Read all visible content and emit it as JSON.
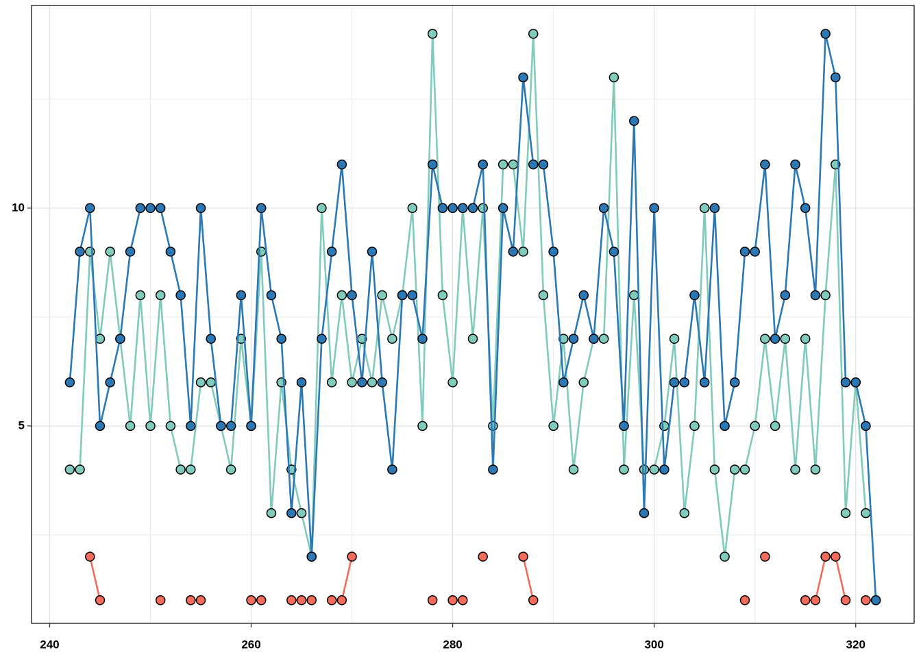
{
  "chart_data": {
    "type": "line",
    "x": [
      242,
      243,
      244,
      245,
      246,
      247,
      248,
      249,
      250,
      251,
      252,
      253,
      254,
      255,
      256,
      257,
      258,
      259,
      260,
      261,
      262,
      263,
      264,
      265,
      266,
      267,
      268,
      269,
      270,
      271,
      272,
      273,
      274,
      275,
      276,
      277,
      278,
      279,
      280,
      281,
      282,
      283,
      284,
      285,
      286,
      287,
      288,
      289,
      290,
      291,
      292,
      293,
      294,
      295,
      296,
      297,
      298,
      299,
      300,
      301,
      302,
      303,
      304,
      305,
      306,
      307,
      308,
      309,
      310,
      311,
      312,
      313,
      314,
      315,
      316,
      317,
      318,
      319,
      320,
      321,
      322
    ],
    "series": [
      {
        "color": "#f26b5b",
        "values": [
          null,
          null,
          2,
          1,
          null,
          null,
          null,
          null,
          null,
          1,
          null,
          null,
          1,
          1,
          null,
          null,
          null,
          null,
          1,
          1,
          null,
          null,
          1,
          1,
          1,
          null,
          1,
          1,
          2,
          null,
          null,
          null,
          null,
          null,
          null,
          null,
          1,
          null,
          1,
          1,
          null,
          2,
          null,
          null,
          null,
          2,
          1,
          null,
          null,
          null,
          null,
          null,
          null,
          null,
          null,
          null,
          null,
          null,
          null,
          null,
          null,
          null,
          null,
          null,
          null,
          null,
          null,
          1,
          null,
          2,
          null,
          null,
          null,
          1,
          1,
          2,
          2,
          1,
          null,
          1,
          1
        ]
      },
      {
        "color": "#80cbbb",
        "values": [
          4,
          4,
          9,
          7,
          9,
          7,
          5,
          8,
          5,
          8,
          5,
          4,
          4,
          6,
          6,
          5,
          4,
          7,
          5,
          9,
          3,
          6,
          4,
          3,
          2,
          10,
          6,
          8,
          6,
          7,
          6,
          8,
          7,
          8,
          10,
          5,
          14,
          8,
          6,
          10,
          7,
          10,
          5,
          11,
          11,
          9,
          14,
          8,
          5,
          7,
          4,
          6,
          7,
          7,
          13,
          4,
          8,
          4,
          4,
          5,
          7,
          3,
          5,
          10,
          4,
          2,
          4,
          4,
          5,
          7,
          5,
          7,
          4,
          7,
          4,
          8,
          11,
          3,
          6,
          3,
          null
        ]
      },
      {
        "color": "#2b78b4",
        "values": [
          6,
          9,
          10,
          5,
          6,
          7,
          9,
          10,
          10,
          10,
          9,
          8,
          5,
          10,
          7,
          5,
          5,
          8,
          5,
          10,
          8,
          7,
          3,
          6,
          2,
          7,
          9,
          11,
          8,
          6,
          9,
          6,
          4,
          8,
          8,
          7,
          11,
          10,
          10,
          10,
          10,
          11,
          4,
          10,
          9,
          13,
          11,
          11,
          9,
          6,
          7,
          8,
          7,
          10,
          9,
          5,
          12,
          3,
          10,
          4,
          6,
          6,
          8,
          6,
          10,
          5,
          6,
          9,
          9,
          11,
          7,
          8,
          11,
          10,
          8,
          14,
          13,
          6,
          6,
          5,
          1
        ]
      }
    ],
    "xlim": [
      238.2,
      325.8
    ],
    "xticks": [
      240,
      260,
      280,
      300,
      320
    ],
    "x_minor_grid": [
      250,
      270,
      290,
      310
    ],
    "ylim": [
      0.47,
      14.65
    ],
    "yticks": [
      5,
      10
    ],
    "y_minor_grid": [
      2.5,
      7.5,
      12.5
    ],
    "grid": true
  }
}
